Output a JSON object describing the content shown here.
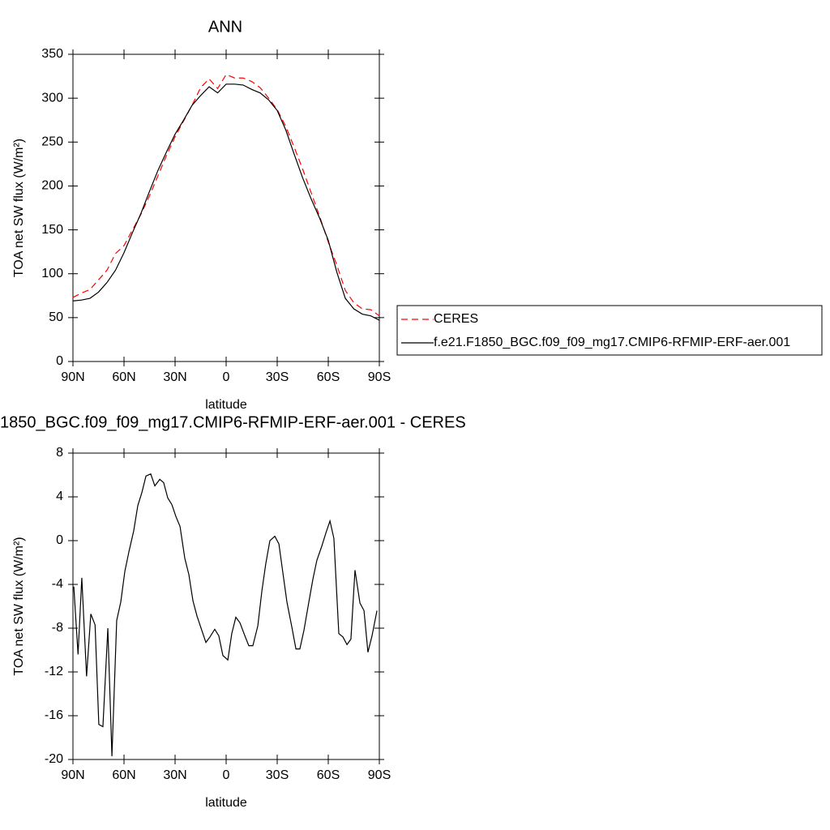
{
  "chart_data": [
    {
      "type": "line",
      "title": "ANN",
      "xlabel": "latitude",
      "ylabel": "TOA net SW flux (W/m²)",
      "x": [
        90,
        85,
        80,
        75,
        70,
        65,
        60,
        55,
        50,
        45,
        40,
        35,
        30,
        25,
        20,
        15,
        10,
        5,
        0,
        -5,
        -10,
        -15,
        -20,
        -25,
        -30,
        -35,
        -40,
        -45,
        -50,
        -55,
        -60,
        -65,
        -70,
        -75,
        -80,
        -85,
        -90
      ],
      "series": [
        {
          "name": "CERES",
          "color": "#ff0000",
          "dashed": true,
          "values": [
            73,
            78,
            82,
            93,
            104,
            123,
            132,
            150,
            168,
            189,
            212,
            235,
            256,
            274,
            292,
            312,
            322,
            311,
            327,
            323,
            323,
            319,
            312,
            300,
            287,
            268,
            244,
            219,
            192,
            165,
            136,
            110,
            81,
            67,
            60,
            59,
            52
          ]
        },
        {
          "name": "f.e21.F1850_BGC.f09_f09_mg17.CMIP6-RFMIP-ERF-aer.001",
          "color": "#000000",
          "dashed": false,
          "values": [
            69,
            70,
            72,
            79,
            90,
            104,
            124,
            147,
            169,
            194,
            218,
            239,
            259,
            275,
            292,
            303,
            313,
            306,
            316,
            316,
            315,
            310,
            306,
            298,
            286,
            264,
            236,
            209,
            185,
            163,
            138,
            102,
            72,
            60,
            54,
            52,
            47
          ]
        }
      ],
      "xlim": [
        90,
        -90
      ],
      "xticks": [
        {
          "value": 90,
          "label": "90N"
        },
        {
          "value": 60,
          "label": "60N"
        },
        {
          "value": 30,
          "label": "30N"
        },
        0,
        {
          "value": -30,
          "label": "30S"
        },
        {
          "value": -60,
          "label": "60S"
        },
        {
          "value": -90,
          "label": "90S"
        }
      ],
      "ylim": [
        0,
        350
      ],
      "yticks": [
        0,
        50,
        100,
        150,
        200,
        250,
        300,
        350
      ],
      "legend": "right"
    },
    {
      "type": "line",
      "title": "1850_BGC.f09_f09_mg17.CMIP6-RFMIP-ERF-aer.001 - CERES",
      "xlabel": "latitude",
      "ylabel": "TOA net SW flux (W/m²)",
      "x": [
        89.5,
        87,
        84.8,
        82,
        79.5,
        77,
        74.8,
        72.4,
        69.5,
        67.1,
        64.3,
        61.9,
        59.5,
        57.1,
        54.3,
        51.9,
        49.5,
        47.1,
        44.3,
        41.9,
        39,
        36.7,
        34.3,
        31.9,
        29.5,
        27.1,
        24.3,
        21.9,
        19.5,
        17.1,
        14.3,
        11.9,
        9.5,
        6.7,
        4.3,
        1.9,
        -1,
        -3.3,
        -5.7,
        -8.1,
        -11,
        -13.3,
        -15.7,
        -18.6,
        -21,
        -23.3,
        -25.7,
        -28.6,
        -31,
        -33.3,
        -35.7,
        -38.6,
        -41,
        -43.3,
        -45.7,
        -48.6,
        -51,
        -53.3,
        -56.2,
        -58.6,
        -61,
        -63.3,
        -66.2,
        -68.6,
        -71,
        -73.3,
        -75.7,
        -78.6,
        -81,
        -83.3,
        -85.7,
        -88.6
      ],
      "series": [
        {
          "color": "#000000",
          "dashed": false,
          "values": [
            -4.2,
            -10.4,
            -3.4,
            -12.4,
            -6.7,
            -7.7,
            -16.8,
            -17,
            -8,
            -19.7,
            -7.3,
            -5.6,
            -2.8,
            -1,
            0.9,
            3.2,
            4.4,
            5.9,
            6.1,
            5,
            5.6,
            5.3,
            3.9,
            3.3,
            2.2,
            1.3,
            -1.6,
            -3.1,
            -5.5,
            -6.9,
            -8.2,
            -9.3,
            -8.8,
            -8.1,
            -8.7,
            -10.5,
            -10.9,
            -8.5,
            -7,
            -7.5,
            -8.7,
            -9.6,
            -9.6,
            -7.8,
            -4.6,
            -2.1,
            0,
            0.4,
            -0.3,
            -2.9,
            -5.6,
            -7.9,
            -9.9,
            -9.9,
            -8.2,
            -5.6,
            -3.5,
            -1.8,
            -0.5,
            0.7,
            1.8,
            0.2,
            -8.5,
            -8.8,
            -9.5,
            -9,
            -2.7,
            -5.7,
            -6.4,
            -10.2,
            -8.7,
            -6.4
          ]
        }
      ],
      "xlim": [
        90,
        -90
      ],
      "xticks": [
        {
          "value": 90,
          "label": "90N"
        },
        {
          "value": 60,
          "label": "60N"
        },
        {
          "value": 30,
          "label": "30N"
        },
        0,
        {
          "value": -30,
          "label": "30S"
        },
        {
          "value": -60,
          "label": "60S"
        },
        {
          "value": -90,
          "label": "90S"
        }
      ],
      "ylim": [
        -20,
        8
      ],
      "yticks": [
        -20,
        -16,
        -12,
        -8,
        -4,
        0,
        4,
        8
      ]
    }
  ]
}
